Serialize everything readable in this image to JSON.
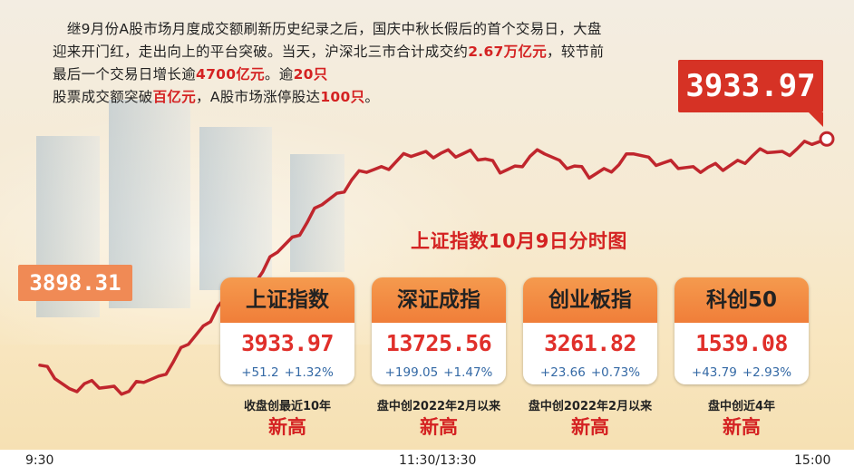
{
  "intro": {
    "p1": "继9月份A股市场月度成交额刷新历史纪录之后，国庆中秋长假后的首个交易日，大盘迎来开门红，走出向上的平台突破。当天，沪深北三市合计成交约",
    "turnover": "2.67万亿元",
    "p2": "，较节前最后一个交易日增长逾",
    "increase": "4700亿元",
    "p3": "。逾",
    "stocks_count": "20只",
    "p4": "股票成交额突破",
    "stock_turnover": "百亿元",
    "p5": "，A股市场涨停股达",
    "limit_up": "100只",
    "p6": "。"
  },
  "chart_data": {
    "type": "line",
    "title": "上证指数10月9日分时图",
    "x_ticks": [
      "9:30",
      "11:30/13:30",
      "15:00"
    ],
    "start_label": "3898.31",
    "end_label": "3933.97",
    "ylim": [
      3893,
      3939
    ],
    "series": [
      {
        "values": [
          3898.31,
          3896.2,
          3894.6,
          3895.4,
          3894.7,
          3895.0,
          3894.2,
          3895.6,
          3896.6,
          3898.9,
          3901.6,
          3904.5,
          3907.6,
          3908.7,
          3911.3,
          3913.0,
          3916.1,
          3918.5,
          3920.8,
          3923.6,
          3925.4,
          3927.5,
          3928.7,
          3929.6,
          3930.4,
          3931.2,
          3932.0,
          3931.7,
          3931.1,
          3932.2,
          3930.8,
          3928.6,
          3929.7,
          3931.2,
          3931.6,
          3930.6,
          3929.7,
          3927.8,
          3929.3,
          3929.9,
          3931.6,
          3931.1,
          3930.2,
          3929.3,
          3929.6,
          3929.5,
          3929.0,
          3930.6,
          3931.3,
          3931.8,
          3932.0,
          3932.4,
          3933.1,
          3933.97
        ]
      }
    ],
    "colors": {
      "line": "#c0262d",
      "accent": "#d42222",
      "card_header": "#f59a4e"
    }
  },
  "cards": [
    {
      "name": "上证指数",
      "value": "3933.97",
      "change_pts": "+51.2",
      "change_pct": "+1.32%",
      "note": "收盘创最近10年",
      "record": "新高"
    },
    {
      "name": "深证成指",
      "value": "13725.56",
      "change_pts": "+199.05",
      "change_pct": "+1.47%",
      "note": "盘中创2022年2月以来",
      "record": "新高"
    },
    {
      "name": "创业板指",
      "value": "3261.82",
      "change_pts": "+23.66",
      "change_pct": "+0.73%",
      "note": "盘中创2022年2月以来",
      "record": "新高"
    },
    {
      "name": "科创50",
      "value": "1539.08",
      "change_pts": "+43.79",
      "change_pct": "+2.93%",
      "note": "盘中创近4年",
      "record": "新高"
    }
  ]
}
